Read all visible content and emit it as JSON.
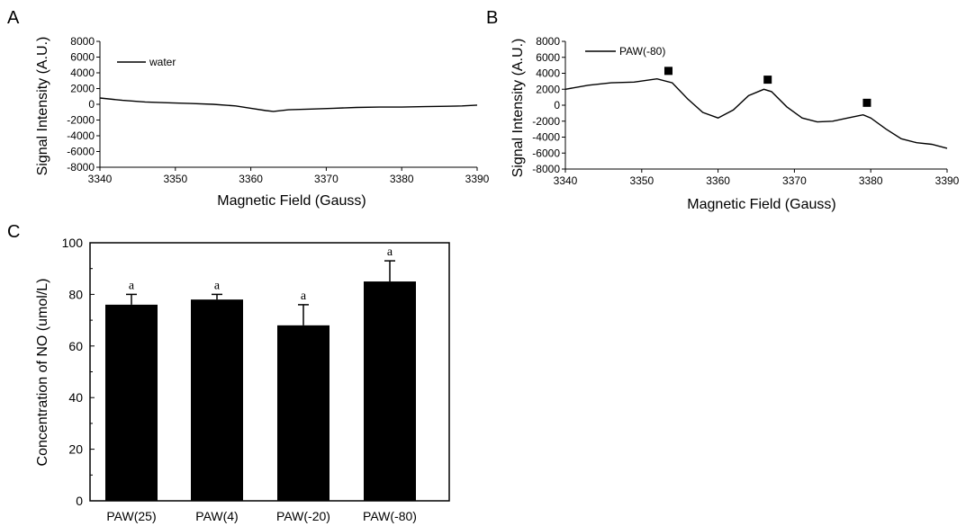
{
  "chart_data": [
    {
      "panel": "A",
      "type": "line",
      "xlabel": "Magnetic Field (Gauss)",
      "ylabel": "Signal Intensity (A.U.)",
      "xlim": [
        3340,
        3390
      ],
      "ylim": [
        -8000,
        8000
      ],
      "xticks": [
        3340,
        3350,
        3360,
        3370,
        3380,
        3390
      ],
      "yticks": [
        8000,
        6000,
        4000,
        2000,
        0,
        -2000,
        -4000,
        -6000,
        -8000
      ],
      "legend_position": "top-left",
      "series": [
        {
          "name": "water",
          "x": [
            3340,
            3343,
            3346,
            3349,
            3352,
            3355,
            3358,
            3360,
            3362,
            3363,
            3365,
            3368,
            3371,
            3374,
            3377,
            3380,
            3383,
            3386,
            3388,
            3390
          ],
          "y": [
            800,
            500,
            300,
            200,
            100,
            0,
            -200,
            -500,
            -800,
            -900,
            -700,
            -600,
            -500,
            -400,
            -350,
            -350,
            -300,
            -250,
            -200,
            -100
          ]
        }
      ]
    },
    {
      "panel": "B",
      "type": "line",
      "xlabel": "Magnetic Field (Gauss)",
      "ylabel": "Signal Intensity (A.U.)",
      "xlim": [
        3340,
        3390
      ],
      "ylim": [
        -8000,
        8000
      ],
      "xticks": [
        3340,
        3350,
        3360,
        3370,
        3380,
        3390
      ],
      "yticks": [
        8000,
        6000,
        4000,
        2000,
        0,
        -2000,
        -4000,
        -6000,
        -8000
      ],
      "legend_position": "top-left",
      "series": [
        {
          "name": "PAW(-80)",
          "x": [
            3340,
            3343,
            3346,
            3349,
            3352,
            3354,
            3356,
            3358,
            3360,
            3362,
            3364,
            3366,
            3367,
            3369,
            3371,
            3373,
            3375,
            3377,
            3379,
            3380,
            3382,
            3384,
            3386,
            3388,
            3390
          ],
          "y": [
            2000,
            2500,
            2800,
            2900,
            3300,
            2800,
            800,
            -900,
            -1600,
            -600,
            1200,
            2000,
            1700,
            -200,
            -1600,
            -2100,
            -2000,
            -1600,
            -1200,
            -1600,
            -3000,
            -4200,
            -4700,
            -4900,
            -5400
          ]
        }
      ],
      "markers": {
        "shape": "square",
        "x": [
          3353.5,
          3366.5,
          3379.5
        ],
        "y": [
          4300,
          3200,
          300
        ]
      }
    },
    {
      "panel": "C",
      "type": "bar",
      "categories": [
        "PAW(25)",
        "PAW(4)",
        "PAW(-20)",
        "PAW(-80)"
      ],
      "values": [
        76,
        78,
        68,
        85
      ],
      "errors": [
        4,
        2,
        8,
        8
      ],
      "annotations": [
        "a",
        "a",
        "a",
        "a"
      ],
      "ylabel": "Concentration of NO  (umol/L)",
      "ylim": [
        0,
        100
      ],
      "yticks": [
        0,
        20,
        40,
        60,
        80,
        100
      ],
      "bar_color": "#000000"
    }
  ],
  "panel_labels": [
    "A",
    "B",
    "C"
  ]
}
